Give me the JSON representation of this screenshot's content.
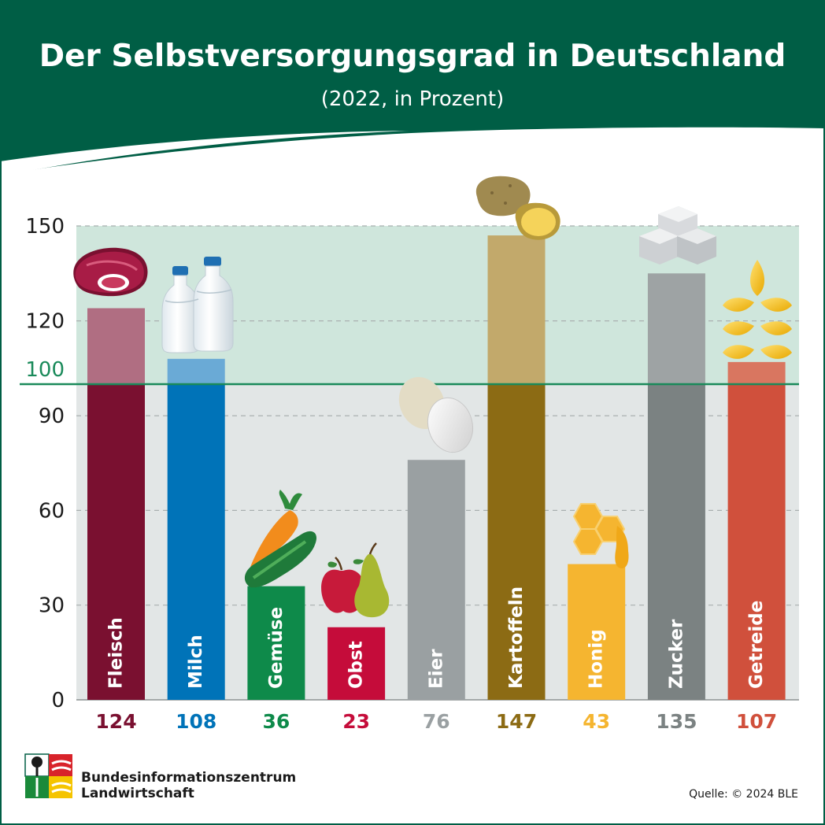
{
  "colors": {
    "header_green": "#005e45",
    "band_green": "#cfe6dc",
    "lower_grey": "#e2e6e6",
    "reference_line": "#1a8a5a"
  },
  "icons": [
    "steak-icon",
    "milk-bottles-icon",
    "carrot-cucumber-icon",
    "apple-pear-icon",
    "eggs-icon",
    "potatoes-icon",
    "honeycomb-icon",
    "sugar-cubes-icon",
    "wheat-icon"
  ],
  "chart_data": {
    "type": "bar",
    "title": "Der Selbstversorgungsgrad in Deutschland",
    "subtitle": "(2022, in Prozent)",
    "categories": [
      "Fleisch",
      "Milch",
      "Gemüse",
      "Obst",
      "Eier",
      "Kartoffeln",
      "Honig",
      "Zucker",
      "Getreide"
    ],
    "values": [
      124,
      108,
      36,
      23,
      76,
      147,
      43,
      135,
      107
    ],
    "value_labels": [
      "124",
      "108",
      "36",
      "23",
      "76",
      "147",
      "43",
      "135",
      "107"
    ],
    "bar_colors": [
      "#7a1030",
      "#0073b8",
      "#0e8a4a",
      "#c50c3a",
      "#9aa0a2",
      "#8c6b14",
      "#f5b530",
      "#7b8282",
      "#d0503c"
    ],
    "upper_colors": [
      "#b06e82",
      "#6aaad6",
      "#0e8a4a",
      "#c50c3a",
      "#9aa0a2",
      "#c2a96b",
      "#f5b530",
      "#9ea3a4",
      "#d97660"
    ],
    "y_ticks": [
      "0",
      "30",
      "60",
      "90",
      "120",
      "150"
    ],
    "reference_label": "100",
    "reference_value": 100,
    "ylim": [
      0,
      150
    ],
    "scale": "piecewise: 0–100 and 100–150",
    "grid": true
  },
  "footer": {
    "org_line1": "Bundesinformationszentrum",
    "org_line2": "Landwirtschaft",
    "source": "Quelle: © 2024 BLE"
  }
}
